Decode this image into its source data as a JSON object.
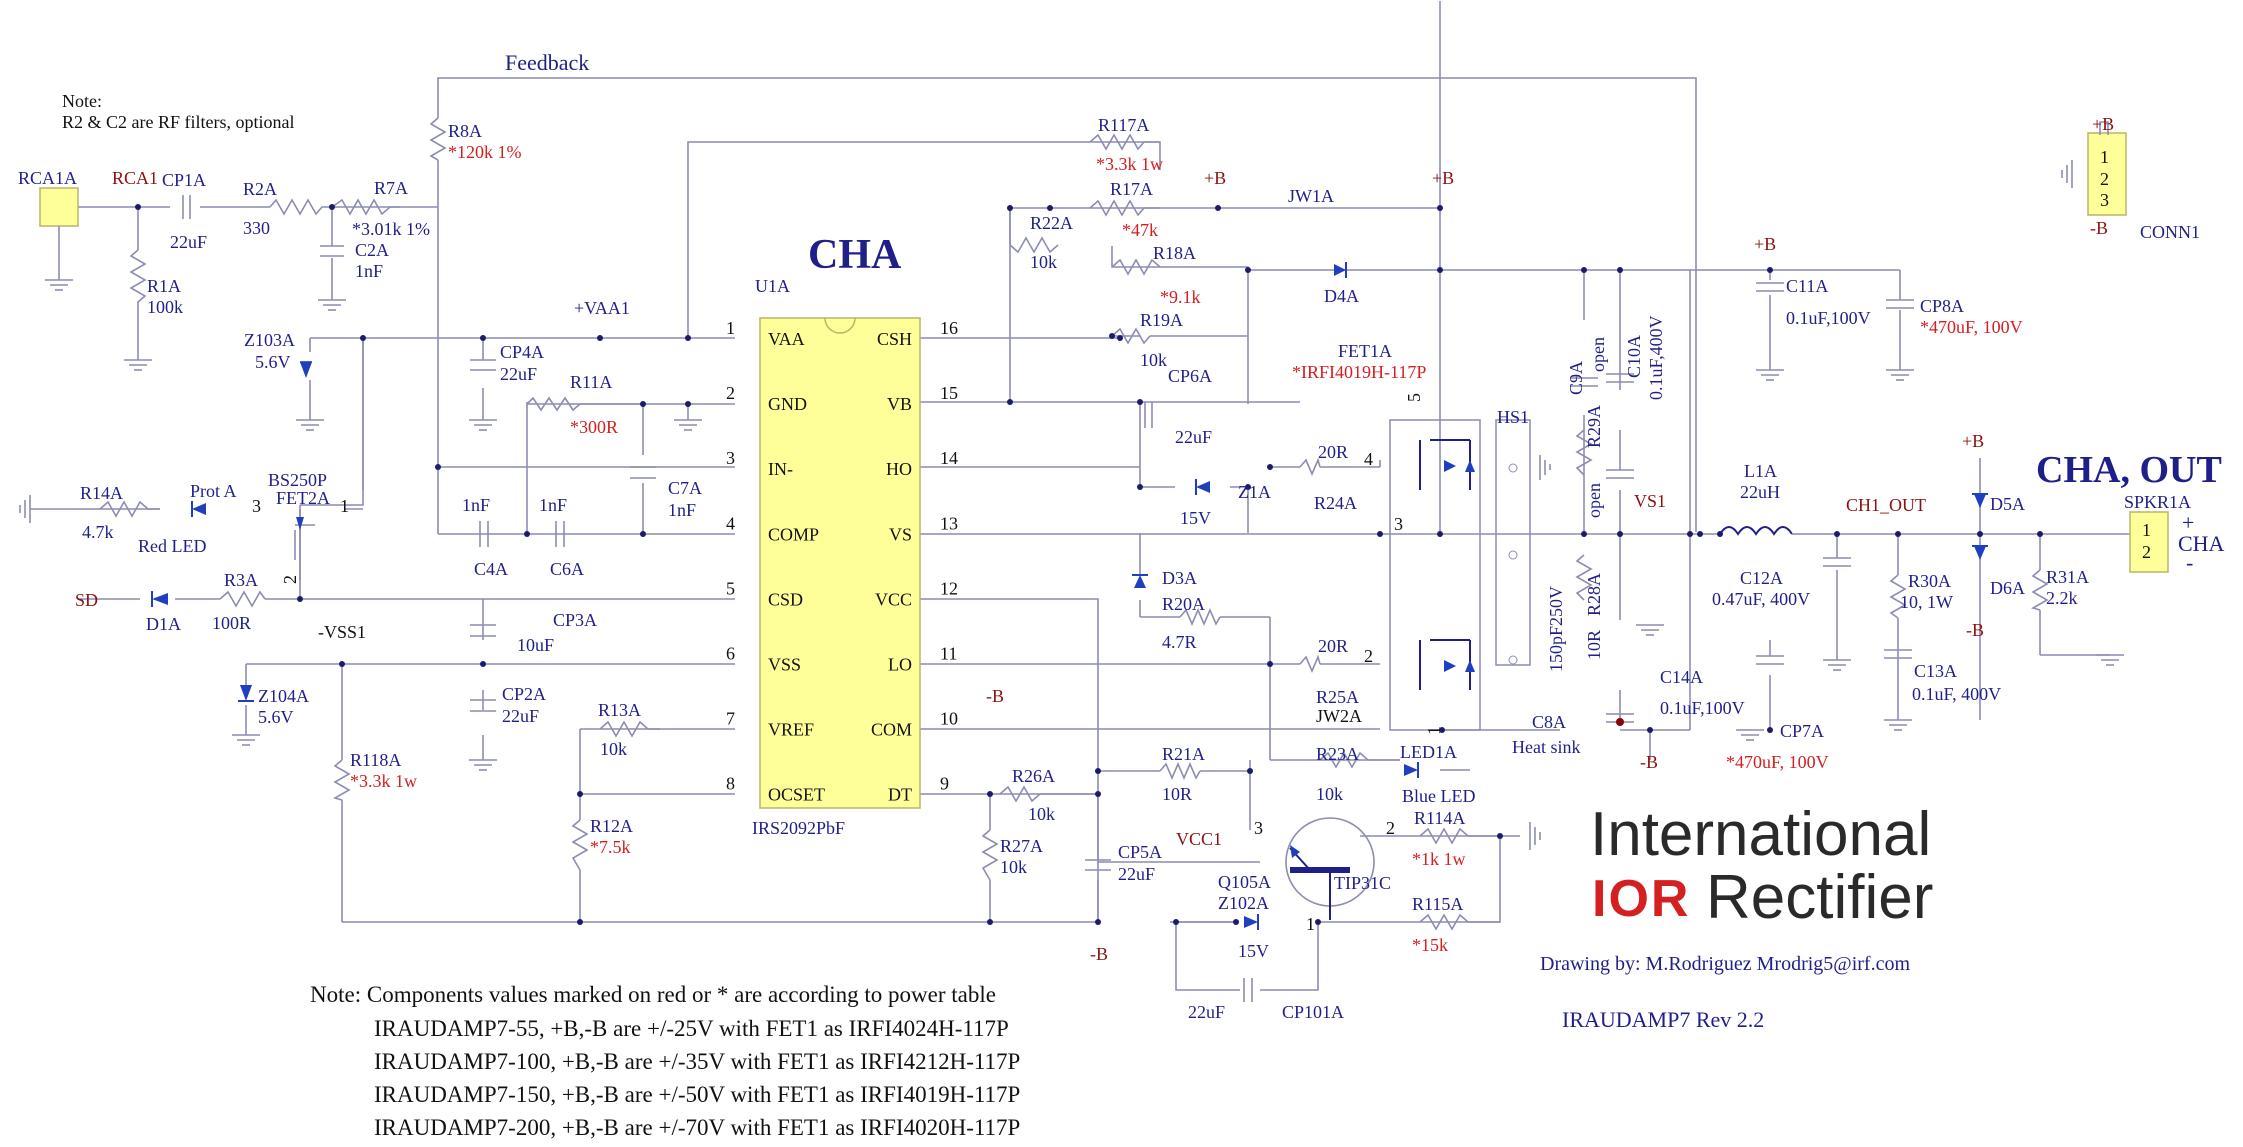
{
  "labels": {
    "note_title": "Note:",
    "note_rf": "R2 & C2 are RF filters, optional",
    "feedback": "Feedback",
    "cha": "CHA",
    "cha_out": "CHA, OUT",
    "ic_ref": "U1A",
    "ic_part": "IRS2092PbF",
    "vaa1": "+VAA1",
    "vss1": "-VSS1",
    "jw1a": "JW1A",
    "jw2a": "JW2A",
    "fet1a": "FET1A",
    "fet1a_part": "*IRFI4019H-117P",
    "fet2a": "FET2A",
    "bs250p": "BS250P",
    "hs1": "HS1",
    "heat_sink": "Heat sink",
    "vs1": "VS1",
    "ch1_out": "CH1_OUT",
    "vcc1": "VCC1",
    "sd": "SD",
    "prot_a": "Prot A",
    "red_led": "Red LED",
    "blue_led": "Blue LED",
    "led1a": "LED1A",
    "conn1": "CONN1",
    "spkr1a": "SPKR1A",
    "cha_small": "CHA",
    "plus": "+",
    "minus": "-",
    "pB": "+B",
    "mB": "-B",
    "drawing_by": "Drawing by: M.Rodriguez   Mrodrig5@irf.com",
    "revision": "IRAUDAMP7 Rev 2.2",
    "logo_international": "International",
    "logo_ior": "IOR",
    "logo_rectifier": "Rectifier"
  },
  "ic_pins_left": [
    {
      "num": "1",
      "name": "VAA"
    },
    {
      "num": "2",
      "name": "GND"
    },
    {
      "num": "3",
      "name": "IN-"
    },
    {
      "num": "4",
      "name": "COMP"
    },
    {
      "num": "5",
      "name": "CSD"
    },
    {
      "num": "6",
      "name": "VSS"
    },
    {
      "num": "7",
      "name": "VREF"
    },
    {
      "num": "8",
      "name": "OCSET"
    }
  ],
  "ic_pins_right": [
    {
      "num": "16",
      "name": "CSH"
    },
    {
      "num": "15",
      "name": "VB"
    },
    {
      "num": "14",
      "name": "HO"
    },
    {
      "num": "13",
      "name": "VS"
    },
    {
      "num": "12",
      "name": "VCC"
    },
    {
      "num": "11",
      "name": "LO"
    },
    {
      "num": "10",
      "name": "COM"
    },
    {
      "num": "9",
      "name": "DT"
    }
  ],
  "components": {
    "rca1a": "RCA1A",
    "rca1": "RCA1",
    "cp1a": "CP1A",
    "cp1a_v": "22uF",
    "r2a": "R2A",
    "r2a_v": "330",
    "r7a": "R7A",
    "r7a_v": "*3.01k 1%",
    "c2a": "C2A",
    "c2a_v": "1nF",
    "r1a": "R1A",
    "r1a_v": "100k",
    "r8a": "R8A",
    "r8a_v": "*120k 1%",
    "z103a": "Z103A",
    "z103a_v": "5.6V",
    "cp4a": "CP4A",
    "cp4a_v": "22uF",
    "r11a": "R11A",
    "r11a_v": "*300R",
    "c7a": "C7A",
    "c7a_v": "1nF",
    "c4a": "C4A",
    "c4a_v": "1nF",
    "c6a": "C6A",
    "c6a_v": "1nF",
    "r14a": "R14A",
    "r14a_v": "4.7k",
    "r3a": "R3A",
    "r3a_v": "100R",
    "d1a": "D1A",
    "cp3a": "CP3A",
    "cp3a_v": "10uF",
    "cp2a": "CP2A",
    "cp2a_v": "22uF",
    "z104a": "Z104A",
    "z104a_v": "5.6V",
    "r118a": "R118A",
    "r118a_v": "*3.3k 1w",
    "r13a": "R13A",
    "r13a_v": "10k",
    "r12a": "R12A",
    "r12a_v": "*7.5k",
    "r117a": "R117A",
    "r117a_v": "*3.3k 1w",
    "r17a": "R17A",
    "r17a_v": "*47k",
    "r22a": "R22A",
    "r22a_v": "10k",
    "r18a": "R18A",
    "r18a_v": "*9.1k",
    "r19a": "R19A",
    "r19a_v": "10k",
    "d4a": "D4A",
    "cp6a": "CP6A",
    "cp6a_v": "22uF",
    "z1a": "Z1A",
    "z1a_v": "15V",
    "r24a": "R24A",
    "r24a_v": "20R",
    "d3a": "D3A",
    "r20a": "R20A",
    "r20a_v": "4.7R",
    "r25a": "R25A",
    "r25a_v": "20R",
    "r21a": "R21A",
    "r21a_v": "10R",
    "r23a": "R23A",
    "r23a_v": "10k",
    "r26a": "R26A",
    "r26a_v": "10k",
    "r27a": "R27A",
    "r27a_v": "10k",
    "cp5a": "CP5A",
    "cp5a_v": "22uF",
    "q105a": "Q105A",
    "tip31c": "TIP31C",
    "z102a": "Z102A",
    "z102a_v": "15V",
    "cp101a": "CP101A",
    "cp101a_v": "22uF",
    "r114a": "R114A",
    "r114a_v": "*1k 1w",
    "r115a": "R115A",
    "r115a_v": "*15k",
    "c9a": "C9A",
    "c9a_v": "open",
    "c10a": "C10A",
    "c10a_v": "0.1uF,400V",
    "r29a": "R29A",
    "r29a_v": "open",
    "r28a": "R28A",
    "r28a_v": "10R",
    "c8a": "C8A",
    "c8a_v": "150pF250V",
    "c11a": "C11A",
    "c11a_v": "0.1uF,100V",
    "cp8a": "CP8A",
    "cp8a_v": "*470uF, 100V",
    "l1a": "L1A",
    "l1a_v": "22uH",
    "c12a": "C12A",
    "c12a_v": "0.47uF, 400V",
    "r30a": "R30A",
    "r30a_v": "10, 1W",
    "c13a": "C13A",
    "c13a_v": "0.1uF, 400V",
    "c14a": "C14A",
    "c14a_v": "0.1uF,100V",
    "cp7a": "CP7A",
    "cp7a_v": "*470uF, 100V",
    "d5a": "D5A",
    "d6a": "D6A",
    "r31a": "R31A",
    "r31a_v": "2.2k"
  },
  "pin_numbers": {
    "fet_g_hi": "4",
    "fet_d_hi": "5",
    "fet_s": "3",
    "fet_g_lo": "2",
    "fet_lo": "1",
    "q_b": "3",
    "q_c": "2",
    "q_e": "1",
    "fet2_g": "3",
    "fet2_d": "1",
    "fet2_s": "2",
    "conn_1": "1",
    "conn_2": "2",
    "conn_3": "3",
    "spkr_1": "1",
    "spkr_2": "2"
  },
  "power_note": {
    "title": "Note: Components values marked on red or * are according to power table",
    "lines": [
      "IRAUDAMP7-55, +B,-B are +/-25V  with FET1 as IRFI4024H-117P",
      "IRAUDAMP7-100, +B,-B are +/-35V with FET1 as IRFI4212H-117P",
      "IRAUDAMP7-150, +B,-B are +/-50V with FET1 as IRFI4019H-117P",
      "IRAUDAMP7-200, +B,-B are +/-70V with FET1 as IRFI4020H-117P"
    ]
  }
}
